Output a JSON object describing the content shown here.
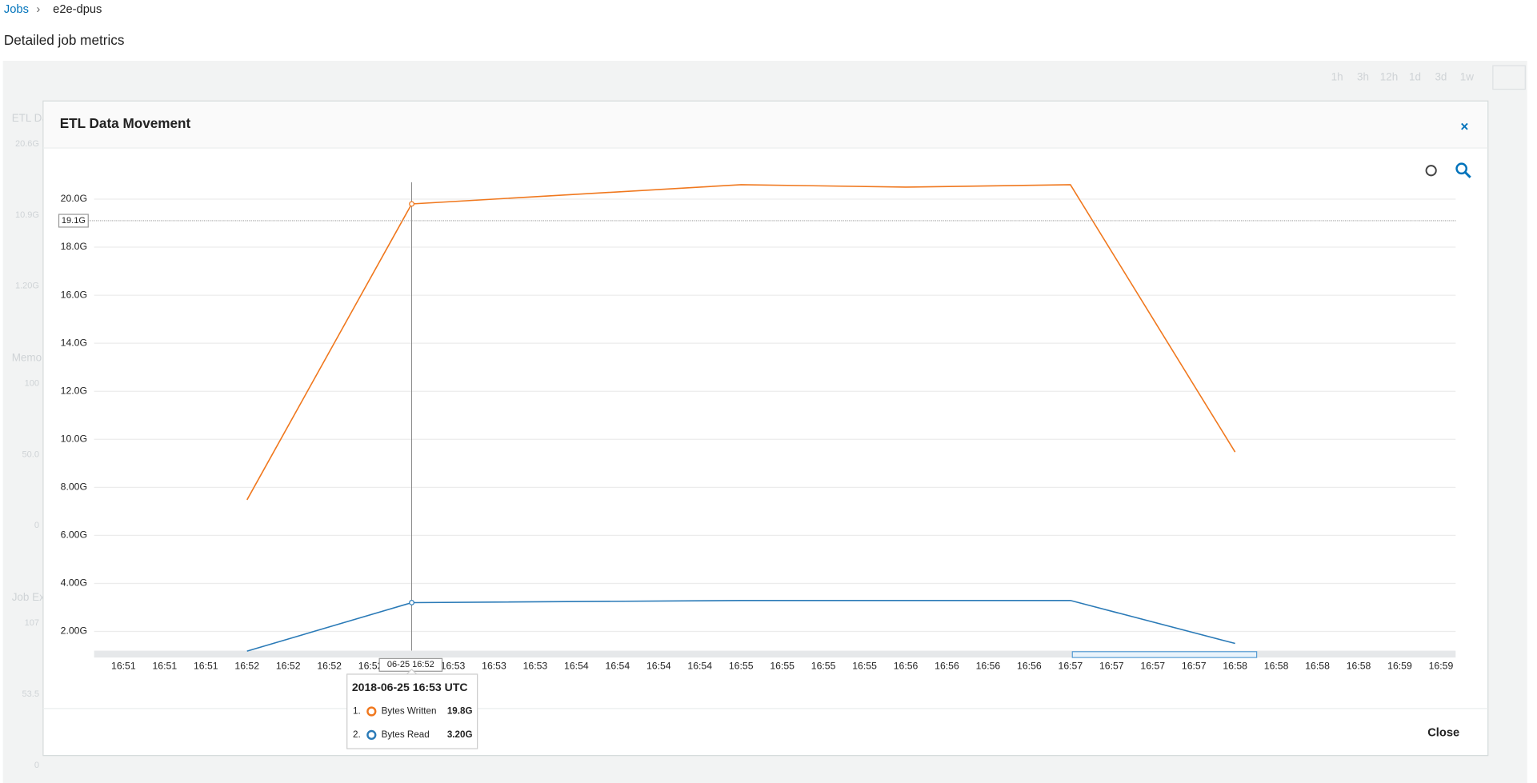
{
  "breadcrumb": {
    "items": [
      "Jobs",
      "e2e-dpus"
    ]
  },
  "page_title": "Detailed job metrics",
  "time_ranges": [
    "1h",
    "3h",
    "12h",
    "1d",
    "3d",
    "1w"
  ],
  "background_panels": [
    {
      "title": "ETL Da",
      "ticks": [
        "20.6G",
        "10.9G",
        "1.20G"
      ]
    },
    {
      "title": "Memo",
      "ticks": [
        "100",
        "50.0",
        "0"
      ]
    },
    {
      "title": "Job Ex",
      "ticks": [
        "107",
        "53.5",
        "0"
      ]
    }
  ],
  "modal": {
    "title": "ETL Data Movement",
    "close_button": "Close"
  },
  "chart_data": {
    "type": "line",
    "categories": [
      "16:51",
      "16:51",
      "16:51",
      "16:52",
      "16:52",
      "16:52",
      "16:52",
      null,
      "16:53",
      "16:53",
      "16:53",
      "16:54",
      "16:54",
      "16:54",
      "16:54",
      "16:55",
      "16:55",
      "16:55",
      "16:55",
      "16:56",
      "16:56",
      "16:56",
      "16:56",
      "16:57",
      "16:57",
      "16:57",
      "16:57",
      "16:58",
      "16:58",
      "16:58",
      "16:58",
      "16:59",
      "16:59"
    ],
    "x": [
      "16:52",
      "16:53",
      "16:55",
      "16:56",
      "16:57",
      "16:58"
    ],
    "series": [
      {
        "name": "Bytes Written",
        "color": "#f0781e",
        "values": [
          7.48,
          19.8,
          20.6,
          20.5,
          20.6,
          9.47
        ],
        "value_labels": [
          null,
          "19.8G",
          null,
          null,
          null,
          null
        ]
      },
      {
        "name": "Bytes Read",
        "color": "#2a7ab7",
        "values": [
          1.18,
          3.2,
          3.29,
          3.29,
          3.29,
          1.5
        ],
        "value_labels": [
          null,
          "3.20G",
          null,
          null,
          null,
          null
        ]
      }
    ],
    "ylim": [
      1.2,
      20.7
    ],
    "yticks": [
      {
        "value": 2,
        "label": "2.00G"
      },
      {
        "value": 4,
        "label": "4.00G"
      },
      {
        "value": 6,
        "label": "6.00G"
      },
      {
        "value": 8,
        "label": "8.00G"
      },
      {
        "value": 10,
        "label": "10.0G"
      },
      {
        "value": 12,
        "label": "12.0G"
      },
      {
        "value": 14,
        "label": "14.0G"
      },
      {
        "value": 16,
        "label": "16.0G"
      },
      {
        "value": 18,
        "label": "18.0G"
      },
      {
        "value": 20,
        "label": "20.0G"
      }
    ],
    "grid": true,
    "crosshair": {
      "x_label": "06-25 16:52",
      "y": {
        "value": 19.1,
        "label": "19.1G"
      }
    },
    "tooltip": {
      "title": "2018-06-25 16:53 UTC",
      "point_index": 1,
      "row_numbers": [
        "1.",
        "2."
      ]
    }
  }
}
